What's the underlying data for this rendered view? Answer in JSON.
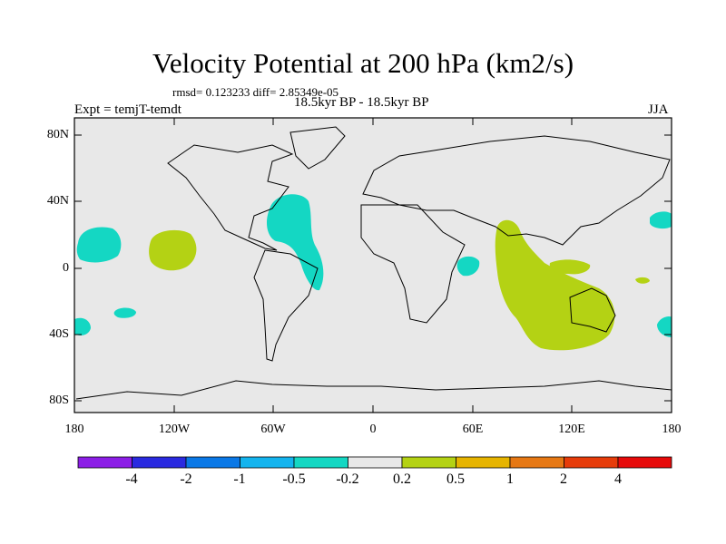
{
  "title": "Velocity Potential at 200 hPa (km2/s)",
  "stats_line": "rmsd= 0.123233 diff= 2.85349e-05",
  "subtitle": "18.5kyr BP - 18.5kyr BP",
  "experiment": "Expt = temjT-temdt",
  "season": "JJA",
  "lat_labels": [
    "80N",
    "40N",
    "0",
    "40S",
    "80S"
  ],
  "lon_labels": [
    "180",
    "120W",
    "60W",
    "0",
    "60E",
    "120E",
    "180"
  ],
  "colorbar": {
    "labels": [
      "-4",
      "-2",
      "-1",
      "-0.5",
      "-0.2",
      "0.2",
      "0.5",
      "1",
      "2",
      "4"
    ],
    "colors": [
      "#8c1ee6",
      "#2a2ae0",
      "#0a78e6",
      "#14b4ee",
      "#14d7c3",
      "#e8e8e8",
      "#b4d214",
      "#e6b400",
      "#e67814",
      "#e63c0a",
      "#e60a0a"
    ]
  },
  "map_colors": {
    "background": "#e8e8e8",
    "negative": "#14d7c3",
    "positive": "#b4d214"
  }
}
